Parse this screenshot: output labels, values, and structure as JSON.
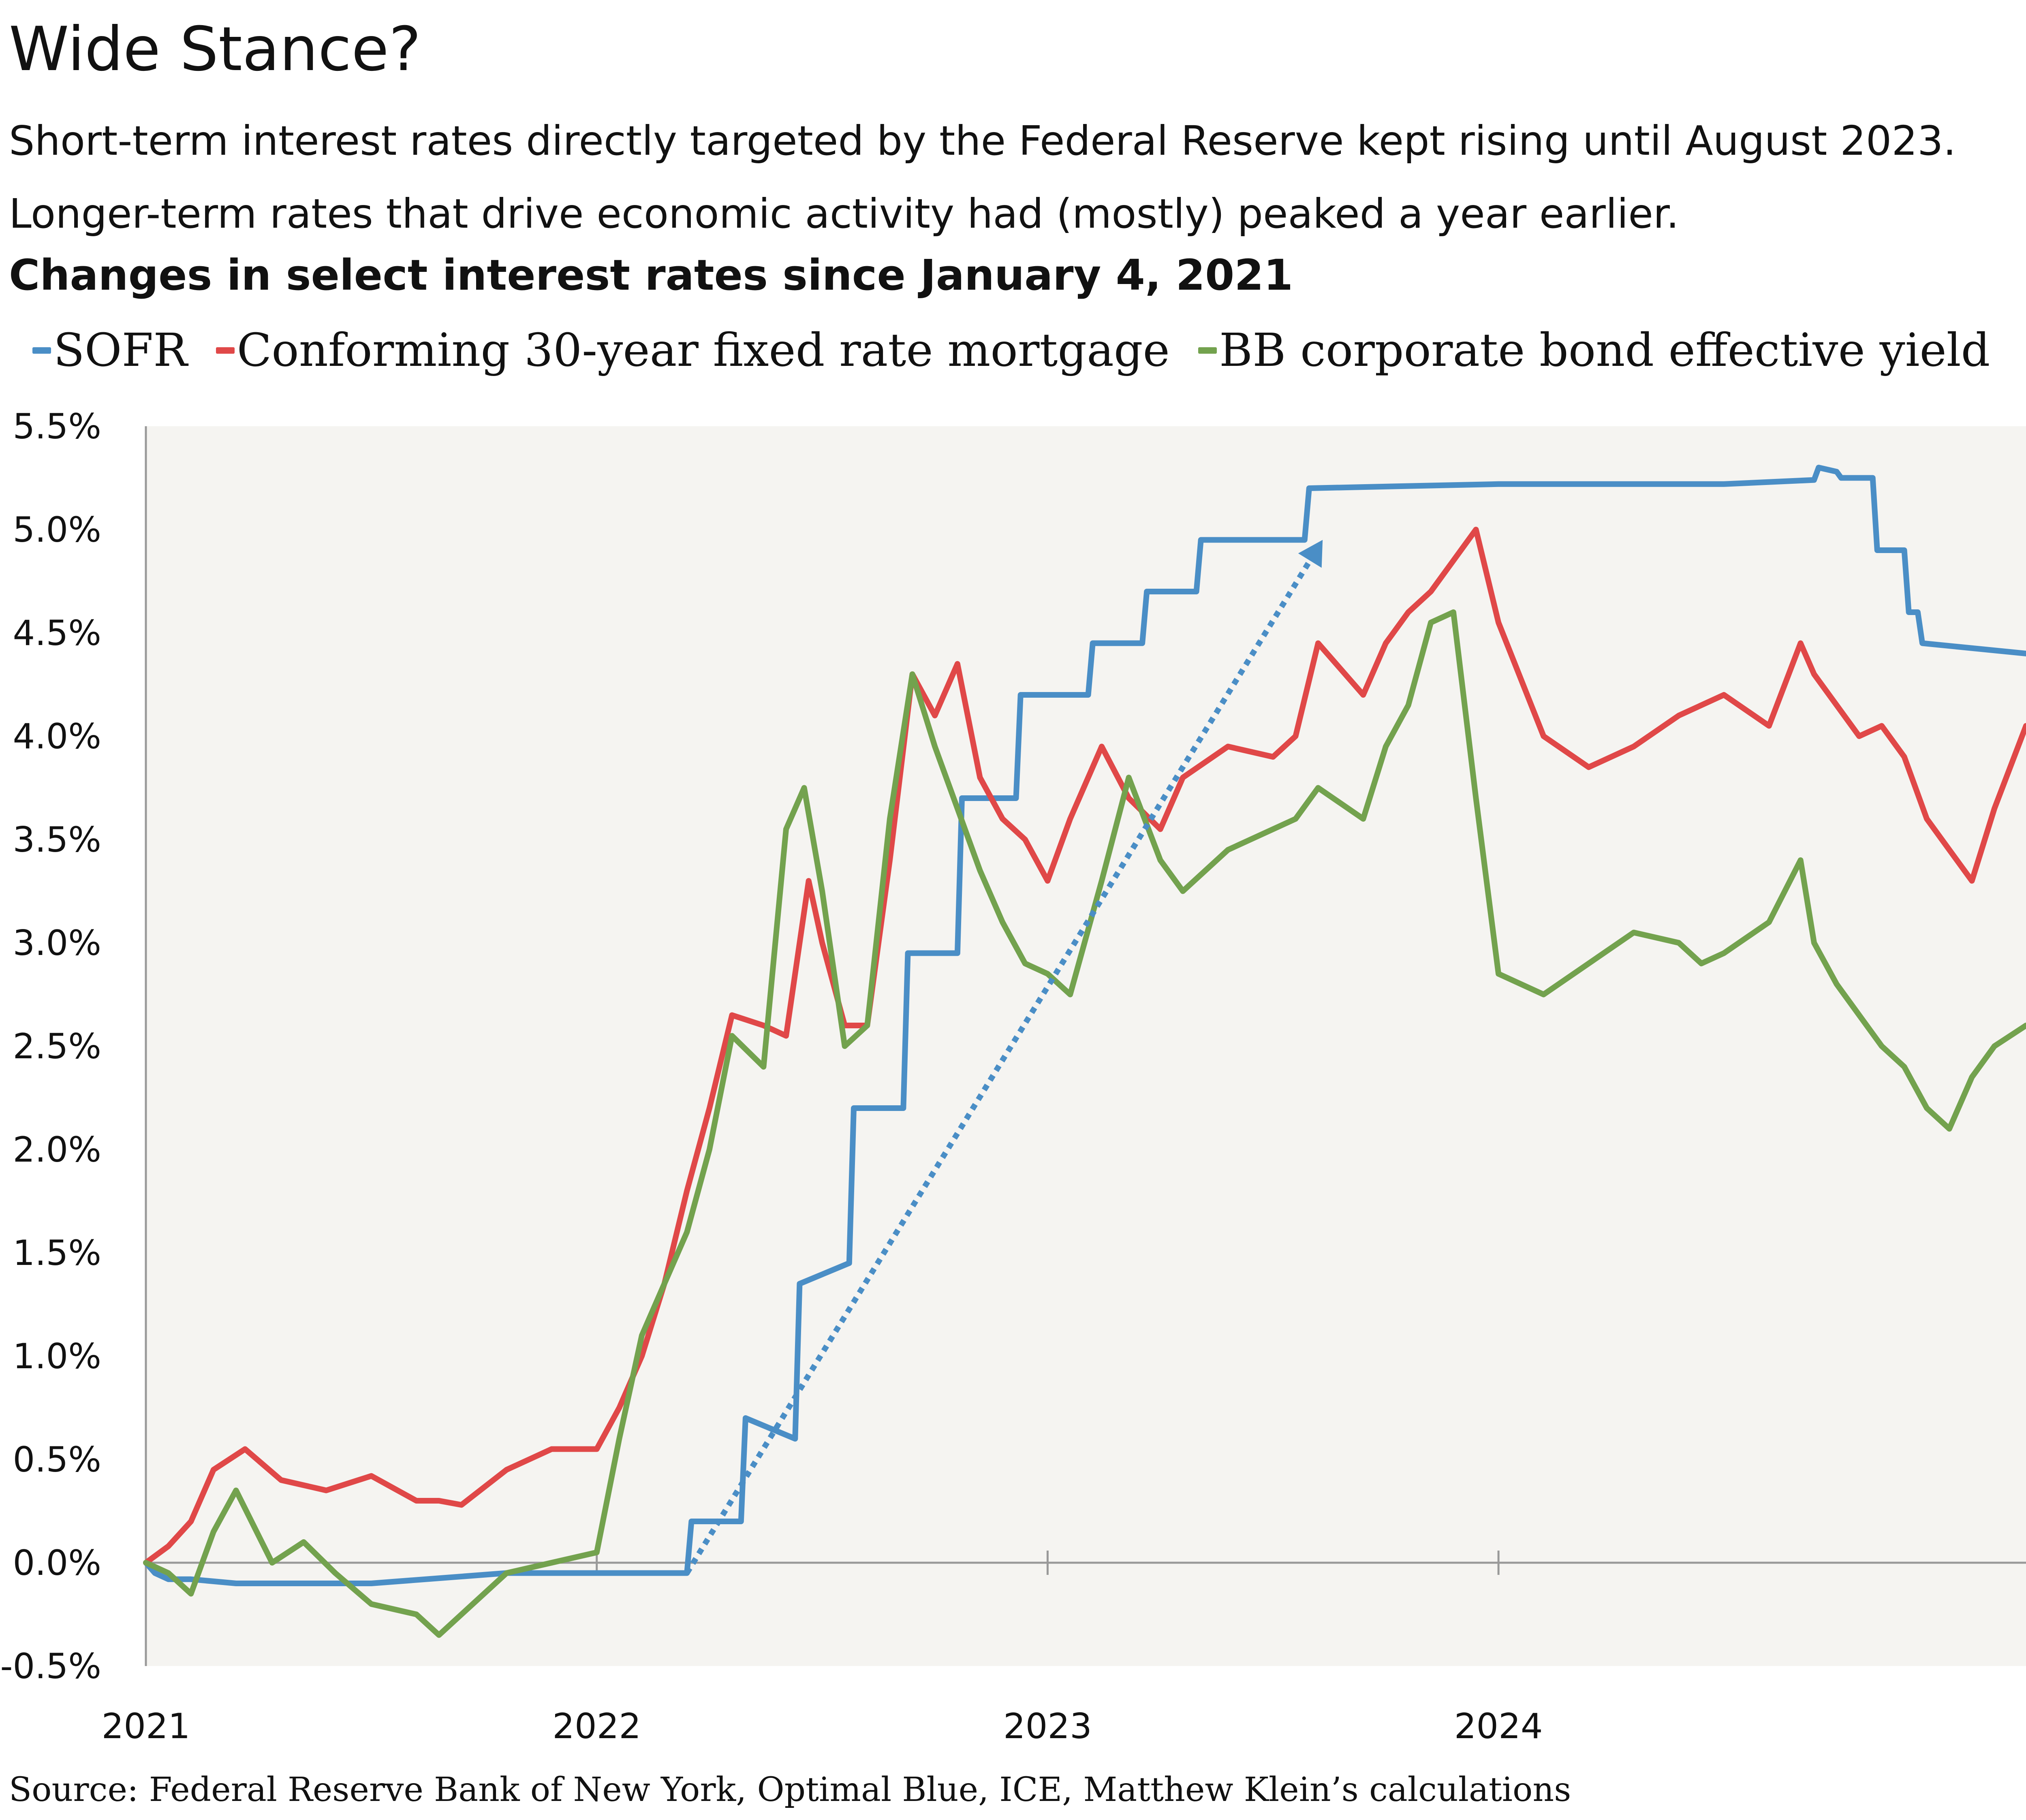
{
  "header": {
    "title": "Wide Stance?",
    "subtitle": "Short-term interest rates directly targeted by the Federal Reserve kept rising until August 2023. Longer-term rates that drive economic activity had (mostly) peaked a year earlier.",
    "chart_heading": "Changes in select interest rates since January 4, 2021"
  },
  "source": "Source: Federal Reserve Bank of New York, Optimal Blue, ICE, Matthew Klein’s calculations",
  "colors": {
    "sofr": "#4a8ec6",
    "mortgage": "#e04848",
    "bb": "#73a24e",
    "plot_bg": "#f5f4f1",
    "axis": "#999999"
  },
  "chart_data": {
    "type": "line",
    "title": "Changes in select interest rates since January 4, 2021",
    "xlabel": "",
    "ylabel": "",
    "x_ticks": [
      "2021",
      "2022",
      "2023",
      "2024"
    ],
    "x_tick_values": [
      2021.0,
      2022.0,
      2023.0,
      2024.0
    ],
    "xlim": [
      2021.0,
      2025.17
    ],
    "y_ticks": [
      "5.5%",
      "5.0%",
      "4.5%",
      "4.0%",
      "3.5%",
      "3.0%",
      "2.5%",
      "2.0%",
      "1.5%",
      "1.0%",
      "0.5%",
      "0.0%",
      "-0.5%"
    ],
    "ylim": [
      -0.5,
      5.5
    ],
    "grid": false,
    "legend_position": "top",
    "series": [
      {
        "name": "SOFR",
        "color": "#4a8ec6",
        "x": [
          2021.0,
          2021.02,
          2021.05,
          2021.1,
          2021.2,
          2021.5,
          2021.8,
          2022.0,
          2022.12,
          2022.2,
          2022.21,
          2022.32,
          2022.33,
          2022.44,
          2022.45,
          2022.56,
          2022.57,
          2022.68,
          2022.69,
          2022.8,
          2022.81,
          2022.93,
          2022.94,
          2023.09,
          2023.1,
          2023.21,
          2023.22,
          2023.33,
          2023.34,
          2023.57,
          2023.58,
          2024.0,
          2024.5,
          2024.7,
          2024.71,
          2024.75,
          2024.76,
          2024.83,
          2024.84,
          2024.9,
          2024.91,
          2024.93,
          2024.94,
          2025.17
        ],
        "y": [
          0.0,
          -0.05,
          -0.08,
          -0.08,
          -0.1,
          -0.1,
          -0.05,
          -0.05,
          -0.05,
          -0.05,
          0.2,
          0.2,
          0.7,
          0.6,
          1.35,
          1.45,
          2.2,
          2.2,
          2.95,
          2.95,
          3.7,
          3.7,
          4.2,
          4.2,
          4.45,
          4.45,
          4.7,
          4.7,
          4.95,
          4.95,
          5.2,
          5.22,
          5.22,
          5.24,
          5.3,
          5.28,
          5.25,
          5.25,
          4.9,
          4.9,
          4.6,
          4.6,
          4.45,
          4.4
        ]
      },
      {
        "name": "Conforming 30-year fixed rate mortgage",
        "color": "#e04848",
        "x": [
          2021.0,
          2021.05,
          2021.1,
          2021.15,
          2021.22,
          2021.3,
          2021.4,
          2021.5,
          2021.6,
          2021.65,
          2021.7,
          2021.8,
          2021.9,
          2022.0,
          2022.05,
          2022.1,
          2022.15,
          2022.2,
          2022.25,
          2022.3,
          2022.37,
          2022.42,
          2022.47,
          2022.5,
          2022.55,
          2022.6,
          2022.65,
          2022.7,
          2022.75,
          2022.8,
          2022.85,
          2022.9,
          2022.95,
          2023.0,
          2023.05,
          2023.12,
          2023.18,
          2023.25,
          2023.3,
          2023.4,
          2023.5,
          2023.55,
          2023.6,
          2023.7,
          2023.75,
          2023.8,
          2023.85,
          2023.9,
          2023.95,
          2024.0,
          2024.1,
          2024.2,
          2024.3,
          2024.4,
          2024.5,
          2024.6,
          2024.67,
          2024.7,
          2024.75,
          2024.8,
          2024.85,
          2024.9,
          2024.95,
          2025.0,
          2025.05,
          2025.1,
          2025.17
        ],
        "y": [
          0.0,
          0.08,
          0.2,
          0.45,
          0.55,
          0.4,
          0.35,
          0.42,
          0.3,
          0.3,
          0.28,
          0.45,
          0.55,
          0.55,
          0.75,
          1.0,
          1.35,
          1.8,
          2.2,
          2.65,
          2.6,
          2.55,
          3.3,
          3.0,
          2.6,
          2.6,
          3.4,
          4.3,
          4.1,
          4.35,
          3.8,
          3.6,
          3.5,
          3.3,
          3.6,
          3.95,
          3.7,
          3.55,
          3.8,
          3.95,
          3.9,
          4.0,
          4.45,
          4.2,
          4.45,
          4.6,
          4.7,
          4.85,
          5.0,
          4.55,
          4.0,
          3.85,
          3.95,
          4.1,
          4.2,
          4.05,
          4.45,
          4.3,
          4.15,
          4.0,
          4.05,
          3.9,
          3.6,
          3.45,
          3.3,
          3.65,
          4.05
        ]
      },
      {
        "name": "BB corporate bond effective yield",
        "color": "#73a24e",
        "x": [
          2021.0,
          2021.05,
          2021.1,
          2021.15,
          2021.2,
          2021.28,
          2021.35,
          2021.42,
          2021.5,
          2021.6,
          2021.65,
          2021.7,
          2021.8,
          2021.9,
          2022.0,
          2022.05,
          2022.1,
          2022.15,
          2022.2,
          2022.25,
          2022.3,
          2022.37,
          2022.42,
          2022.46,
          2022.5,
          2022.55,
          2022.6,
          2022.65,
          2022.7,
          2022.75,
          2022.8,
          2022.85,
          2022.9,
          2022.95,
          2023.0,
          2023.05,
          2023.12,
          2023.18,
          2023.25,
          2023.3,
          2023.4,
          2023.5,
          2023.55,
          2023.6,
          2023.7,
          2023.75,
          2023.8,
          2023.85,
          2023.9,
          2023.95,
          2024.0,
          2024.1,
          2024.2,
          2024.3,
          2024.4,
          2024.45,
          2024.5,
          2024.6,
          2024.67,
          2024.7,
          2024.75,
          2024.8,
          2024.85,
          2024.9,
          2024.95,
          2025.0,
          2025.05,
          2025.1,
          2025.17
        ],
        "y": [
          0.0,
          -0.05,
          -0.15,
          0.15,
          0.35,
          0.0,
          0.1,
          -0.05,
          -0.2,
          -0.25,
          -0.35,
          -0.25,
          -0.05,
          0.0,
          0.05,
          0.6,
          1.1,
          1.35,
          1.6,
          2.0,
          2.55,
          2.4,
          3.55,
          3.75,
          3.25,
          2.5,
          2.6,
          3.6,
          4.3,
          3.95,
          3.65,
          3.35,
          3.1,
          2.9,
          2.85,
          2.75,
          3.3,
          3.8,
          3.4,
          3.25,
          3.45,
          3.55,
          3.6,
          3.75,
          3.6,
          3.95,
          4.15,
          4.55,
          4.6,
          3.7,
          2.85,
          2.75,
          2.9,
          3.05,
          3.0,
          2.9,
          2.95,
          3.1,
          3.4,
          3.0,
          2.8,
          2.65,
          2.5,
          2.4,
          2.2,
          2.1,
          2.35,
          2.5,
          2.6
        ]
      }
    ],
    "annotation": {
      "type": "dotted-arrow",
      "from": [
        2022.2,
        -0.05
      ],
      "to": [
        2023.61,
        4.95
      ]
    }
  }
}
